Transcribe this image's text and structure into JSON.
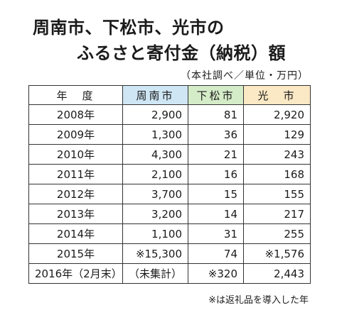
{
  "title": {
    "line1": "周南市、下松市、光市の",
    "line2": "ふるさと寄付金（納税）額"
  },
  "subtitle": "（本社調べ／単位・万円）",
  "table": {
    "headers": [
      {
        "label": "年　度",
        "color": "#ffffff"
      },
      {
        "label": "周南市",
        "color": "#cfe6f5"
      },
      {
        "label": "下松市",
        "color": "#d5ecc8"
      },
      {
        "label": "光　市",
        "color": "#fbe8c4"
      }
    ],
    "rows": [
      {
        "year": "2008年",
        "shunan": "2,900",
        "kudamatsu": "81",
        "hikari": "2,920"
      },
      {
        "year": "2009年",
        "shunan": "1,300",
        "kudamatsu": "36",
        "hikari": "129"
      },
      {
        "year": "2010年",
        "shunan": "4,300",
        "kudamatsu": "21",
        "hikari": "243"
      },
      {
        "year": "2011年",
        "shunan": "2,100",
        "kudamatsu": "16",
        "hikari": "168"
      },
      {
        "year": "2012年",
        "shunan": "3,700",
        "kudamatsu": "15",
        "hikari": "155"
      },
      {
        "year": "2013年",
        "shunan": "3,200",
        "kudamatsu": "14",
        "hikari": "217"
      },
      {
        "year": "2014年",
        "shunan": "1,100",
        "kudamatsu": "31",
        "hikari": "255"
      },
      {
        "year": "2015年",
        "shunan": "※15,300",
        "kudamatsu": "74",
        "hikari": "※1,576"
      },
      {
        "year": "2016年（2月末）",
        "shunan": "（未集計）",
        "kudamatsu": "※320",
        "hikari": "2,443"
      }
    ]
  },
  "footnote": "※は返礼品を導入した年"
}
